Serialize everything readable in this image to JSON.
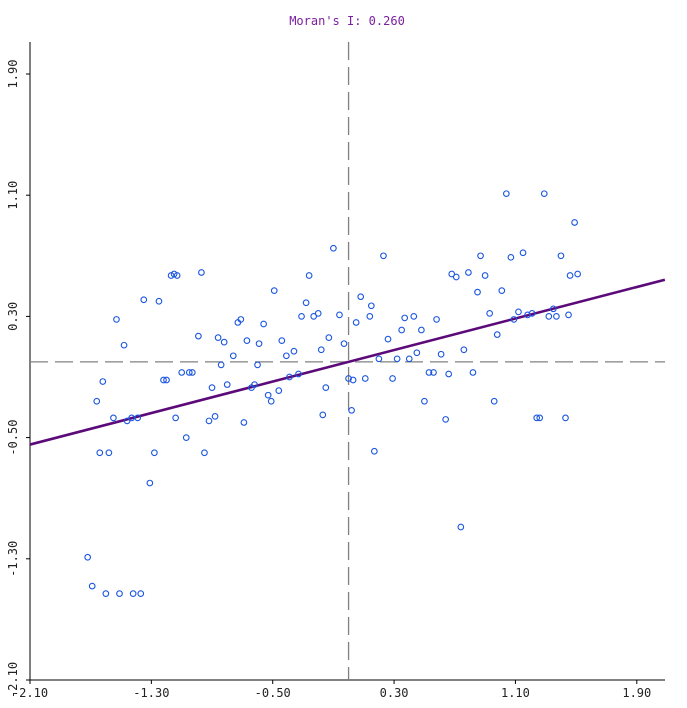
{
  "chart_data": {
    "type": "scatter",
    "title": "Moran's I: 0.260",
    "xlabel": "",
    "ylabel": "",
    "xlim": [
      -2.1,
      2.1
    ],
    "ylim": [
      -2.1,
      2.3
    ],
    "x_ticks": [
      "-2.10",
      "-1.30",
      "-0.50",
      "0.30",
      "1.10",
      "1.90"
    ],
    "x_tick_values": [
      -2.1,
      -1.3,
      -0.5,
      0.3,
      1.1,
      1.9
    ],
    "y_ticks": [
      "-2.10",
      "-1.30",
      "-0.50",
      "0.30",
      "1.10",
      "1.90"
    ],
    "y_tick_values": [
      -2.1,
      -1.3,
      -0.5,
      0.3,
      1.1,
      1.9
    ],
    "grid": false,
    "reference_lines": {
      "x_mean": 0.0,
      "y_mean": 0.0
    },
    "regression": {
      "slope": 0.26,
      "intercept": 0.0
    },
    "colors": {
      "points": "#1a56e0",
      "regression": "#5c0a7a",
      "reference": "#808080",
      "title": "#7a1fa0",
      "axis": "#000000"
    },
    "points": [
      [
        -1.72,
        -1.29
      ],
      [
        -1.69,
        -1.48
      ],
      [
        -1.6,
        -1.53
      ],
      [
        -1.51,
        -1.53
      ],
      [
        -1.42,
        -1.53
      ],
      [
        -1.37,
        -1.53
      ],
      [
        -1.66,
        -0.26
      ],
      [
        -1.64,
        -0.6
      ],
      [
        -1.62,
        -0.13
      ],
      [
        -1.58,
        -0.6
      ],
      [
        -1.55,
        -0.37
      ],
      [
        -1.53,
        0.28
      ],
      [
        -1.48,
        0.11
      ],
      [
        -1.46,
        -0.39
      ],
      [
        -1.43,
        -0.37
      ],
      [
        -1.39,
        -0.37
      ],
      [
        -1.35,
        0.41
      ],
      [
        -1.31,
        -0.8
      ],
      [
        -1.28,
        -0.6
      ],
      [
        -1.25,
        0.4
      ],
      [
        -1.22,
        -0.12
      ],
      [
        -1.2,
        -0.12
      ],
      [
        -1.17,
        0.57
      ],
      [
        -1.15,
        0.58
      ],
      [
        -1.13,
        0.57
      ],
      [
        -1.1,
        -0.07
      ],
      [
        -1.07,
        -0.5
      ],
      [
        -1.05,
        -0.07
      ],
      [
        -1.03,
        -0.07
      ],
      [
        -0.99,
        0.17
      ],
      [
        -0.97,
        0.59
      ],
      [
        -0.95,
        -0.6
      ],
      [
        -0.92,
        -0.39
      ],
      [
        -0.9,
        -0.17
      ],
      [
        -0.88,
        -0.36
      ],
      [
        -0.86,
        0.16
      ],
      [
        -0.84,
        -0.02
      ],
      [
        -0.82,
        0.13
      ],
      [
        -0.8,
        -0.15
      ],
      [
        -0.76,
        0.04
      ],
      [
        -0.73,
        0.26
      ],
      [
        -0.71,
        0.28
      ],
      [
        -0.69,
        -0.4
      ],
      [
        -0.67,
        0.14
      ],
      [
        -0.64,
        -0.17
      ],
      [
        -0.62,
        -0.15
      ],
      [
        -0.59,
        0.12
      ],
      [
        -0.56,
        0.25
      ],
      [
        -0.53,
        -0.22
      ],
      [
        -0.51,
        -0.26
      ],
      [
        -0.49,
        0.47
      ],
      [
        -0.46,
        -0.19
      ],
      [
        -0.44,
        0.14
      ],
      [
        -0.41,
        0.04
      ],
      [
        -0.39,
        -0.1
      ],
      [
        -0.36,
        0.07
      ],
      [
        -0.33,
        -0.08
      ],
      [
        -0.31,
        0.3
      ],
      [
        -0.28,
        0.39
      ],
      [
        -0.26,
        0.57
      ],
      [
        -0.23,
        0.3
      ],
      [
        -0.2,
        0.32
      ],
      [
        -0.17,
        -0.35
      ],
      [
        -0.15,
        -0.17
      ],
      [
        -0.13,
        0.16
      ],
      [
        -0.1,
        0.75
      ],
      [
        -0.06,
        0.31
      ],
      [
        -0.03,
        0.12
      ],
      [
        0.0,
        -0.11
      ],
      [
        0.03,
        -0.12
      ],
      [
        0.05,
        0.26
      ],
      [
        0.08,
        0.43
      ],
      [
        0.11,
        -0.11
      ],
      [
        0.14,
        0.3
      ],
      [
        0.17,
        -0.59
      ],
      [
        0.2,
        0.02
      ],
      [
        0.23,
        0.7
      ],
      [
        0.26,
        0.15
      ],
      [
        0.29,
        -0.11
      ],
      [
        0.32,
        0.02
      ],
      [
        0.35,
        0.21
      ],
      [
        0.37,
        0.29
      ],
      [
        0.4,
        0.02
      ],
      [
        0.43,
        0.3
      ],
      [
        0.45,
        0.06
      ],
      [
        0.48,
        0.21
      ],
      [
        0.5,
        -0.26
      ],
      [
        0.53,
        -0.07
      ],
      [
        0.56,
        -0.07
      ],
      [
        0.58,
        0.28
      ],
      [
        0.61,
        0.05
      ],
      [
        0.64,
        -0.38
      ],
      [
        0.66,
        -0.08
      ],
      [
        0.68,
        0.58
      ],
      [
        0.71,
        0.56
      ],
      [
        0.74,
        -1.09
      ],
      [
        0.76,
        0.08
      ],
      [
        0.79,
        0.59
      ],
      [
        0.82,
        -0.07
      ],
      [
        0.85,
        0.46
      ],
      [
        0.87,
        0.7
      ],
      [
        0.9,
        0.57
      ],
      [
        0.93,
        0.32
      ],
      [
        0.96,
        -0.26
      ],
      [
        0.98,
        0.18
      ],
      [
        1.01,
        0.47
      ],
      [
        1.04,
        1.11
      ],
      [
        1.07,
        0.69
      ],
      [
        1.09,
        0.28
      ],
      [
        1.12,
        0.33
      ],
      [
        1.15,
        0.72
      ],
      [
        1.18,
        0.31
      ],
      [
        1.21,
        0.32
      ],
      [
        1.24,
        -0.37
      ],
      [
        1.26,
        -0.37
      ],
      [
        1.29,
        1.11
      ],
      [
        1.32,
        0.3
      ],
      [
        1.35,
        0.35
      ],
      [
        1.37,
        0.3
      ],
      [
        1.4,
        0.7
      ],
      [
        1.43,
        -0.37
      ],
      [
        1.46,
        0.57
      ],
      [
        1.49,
        0.92
      ],
      [
        1.51,
        0.58
      ],
      [
        -1.14,
        -0.37
      ],
      [
        -0.18,
        0.08
      ],
      [
        0.02,
        -0.32
      ],
      [
        1.45,
        0.31
      ],
      [
        -0.6,
        -0.02
      ],
      [
        0.15,
        0.37
      ]
    ]
  }
}
